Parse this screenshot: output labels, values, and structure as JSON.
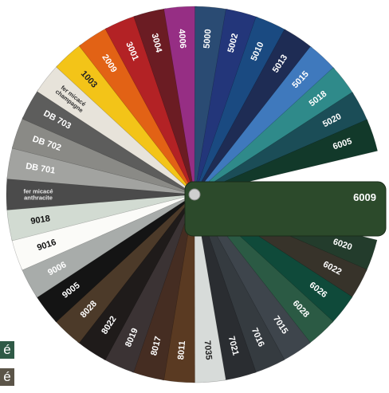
{
  "colors": {
    "background": "#ffffff",
    "pivot": "#c9c9c9",
    "highlight_tab": "#2c4a2b"
  },
  "highlight_label": "6009",
  "swatches": [
    {
      "label": "6020",
      "color": "#233c2c",
      "text": "#ffffff"
    },
    {
      "label": "6022",
      "color": "#37332a",
      "text": "#ffffff"
    },
    {
      "label": "6026",
      "color": "#0f4a3a",
      "text": "#ffffff"
    },
    {
      "label": "6028",
      "color": "#2b5a44",
      "text": "#ffffff"
    },
    {
      "label": "7015",
      "color": "#3e454c",
      "text": "#ffffff"
    },
    {
      "label": "7016",
      "color": "#353b40",
      "text": "#ffffff"
    },
    {
      "label": "7021",
      "color": "#2a2d31",
      "text": "#ffffff"
    },
    {
      "label": "7035",
      "color": "#d7dbd9",
      "text": "#222222"
    },
    {
      "label": "8011",
      "color": "#5a3a22",
      "text": "#ffffff"
    },
    {
      "label": "8017",
      "color": "#452d22",
      "text": "#ffffff"
    },
    {
      "label": "8019",
      "color": "#3b3334",
      "text": "#ffffff"
    },
    {
      "label": "8022",
      "color": "#1f1b1a",
      "text": "#ffffff"
    },
    {
      "label": "8028",
      "color": "#4c3a29",
      "text": "#ffffff"
    },
    {
      "label": "9005",
      "color": "#141414",
      "text": "#ffffff"
    },
    {
      "label": "9006",
      "color": "#a8acaa",
      "text": "#ffffff"
    },
    {
      "label": "9016",
      "color": "#fbfbf8",
      "text": "#111111"
    },
    {
      "label": "9018",
      "color": "#d2dbd2",
      "text": "#111111"
    },
    {
      "label": "fer micacé anthracite",
      "color": "#4b4b4b",
      "text": "#e8e8e8"
    },
    {
      "label": "DB 701",
      "color": "#a2a3a0",
      "text": "#ffffff"
    },
    {
      "label": "DB 702",
      "color": "#8a8a86",
      "text": "#ffffff"
    },
    {
      "label": "DB 703",
      "color": "#5d5d5c",
      "text": "#ffffff"
    },
    {
      "label": "fer micacé champagne",
      "color": "#e7e3da",
      "text": "#333333"
    },
    {
      "label": "1003",
      "color": "#f3c418",
      "text": "#222222"
    },
    {
      "label": "2009",
      "color": "#e26215",
      "text": "#ffffff"
    },
    {
      "label": "3001",
      "color": "#b32225",
      "text": "#ffffff"
    },
    {
      "label": "3004",
      "color": "#6b1c23",
      "text": "#ffffff"
    },
    {
      "label": "4006",
      "color": "#962e84",
      "text": "#ffffff"
    },
    {
      "label": "5000",
      "color": "#2a4b73",
      "text": "#ffffff"
    },
    {
      "label": "5002",
      "color": "#23367a",
      "text": "#ffffff"
    },
    {
      "label": "5010",
      "color": "#1a4a81",
      "text": "#ffffff"
    },
    {
      "label": "5013",
      "color": "#1e2c54",
      "text": "#ffffff"
    },
    {
      "label": "5015",
      "color": "#3f79bd",
      "text": "#ffffff"
    },
    {
      "label": "5018",
      "color": "#2f8a8a",
      "text": "#ffffff"
    },
    {
      "label": "5020",
      "color": "#1b4d57",
      "text": "#ffffff"
    },
    {
      "label": "6005",
      "color": "#12392a",
      "text": "#ffffff"
    }
  ],
  "corner_badges": [
    {
      "label": "é",
      "color": "#2f5a46"
    },
    {
      "label": "é",
      "color": "#5b5448"
    }
  ]
}
